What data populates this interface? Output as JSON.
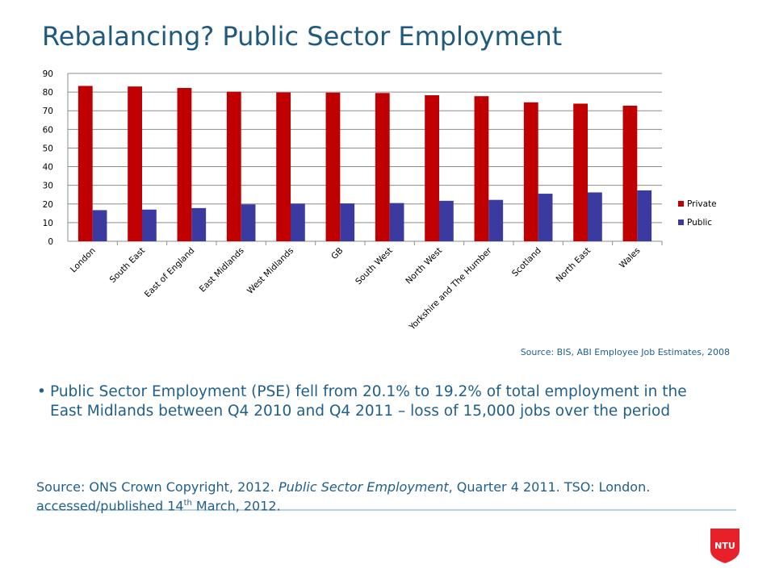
{
  "title": "Rebalancing? Public Sector Employment",
  "chart_data": {
    "type": "bar",
    "categories": [
      "London",
      "South East",
      "East of England",
      "East Midlands",
      "West Midlands",
      "GB",
      "South West",
      "North West",
      "Yorkshire and The Humber",
      "Scotland",
      "North East",
      "Wales"
    ],
    "series": [
      {
        "name": "Private",
        "color": "#c00000",
        "values": [
          83.3,
          83,
          82.2,
          80.2,
          79.8,
          79.7,
          79.5,
          78.3,
          77.8,
          74.5,
          73.8,
          72.7
        ]
      },
      {
        "name": "Public",
        "color": "#3a3aa0",
        "values": [
          16.7,
          17,
          17.8,
          19.8,
          20.2,
          20.3,
          20.5,
          21.7,
          22.2,
          25.5,
          26.2,
          27.3
        ]
      }
    ],
    "ylim": [
      0,
      90
    ],
    "yticks": [
      0,
      10,
      20,
      30,
      40,
      50,
      60,
      70,
      80,
      90
    ],
    "grid": true,
    "legend": "right",
    "source": "Source: BIS, ABI Employee Job Estimates, 2008"
  },
  "bullet": "Public Sector Employment (PSE) fell from 20.1% to 19.2% of total employment in the East Midlands between Q4 2010 and Q4 2011 – loss of 15,000 jobs over the period",
  "source": {
    "parts": [
      "Source: ONS Crown Copyright, 2012.  ",
      "Public Sector Employment",
      ", Quarter 4 2011.  TSO: London.  accessed/published 14",
      "th",
      " March, 2012."
    ]
  },
  "logo": "NTU"
}
